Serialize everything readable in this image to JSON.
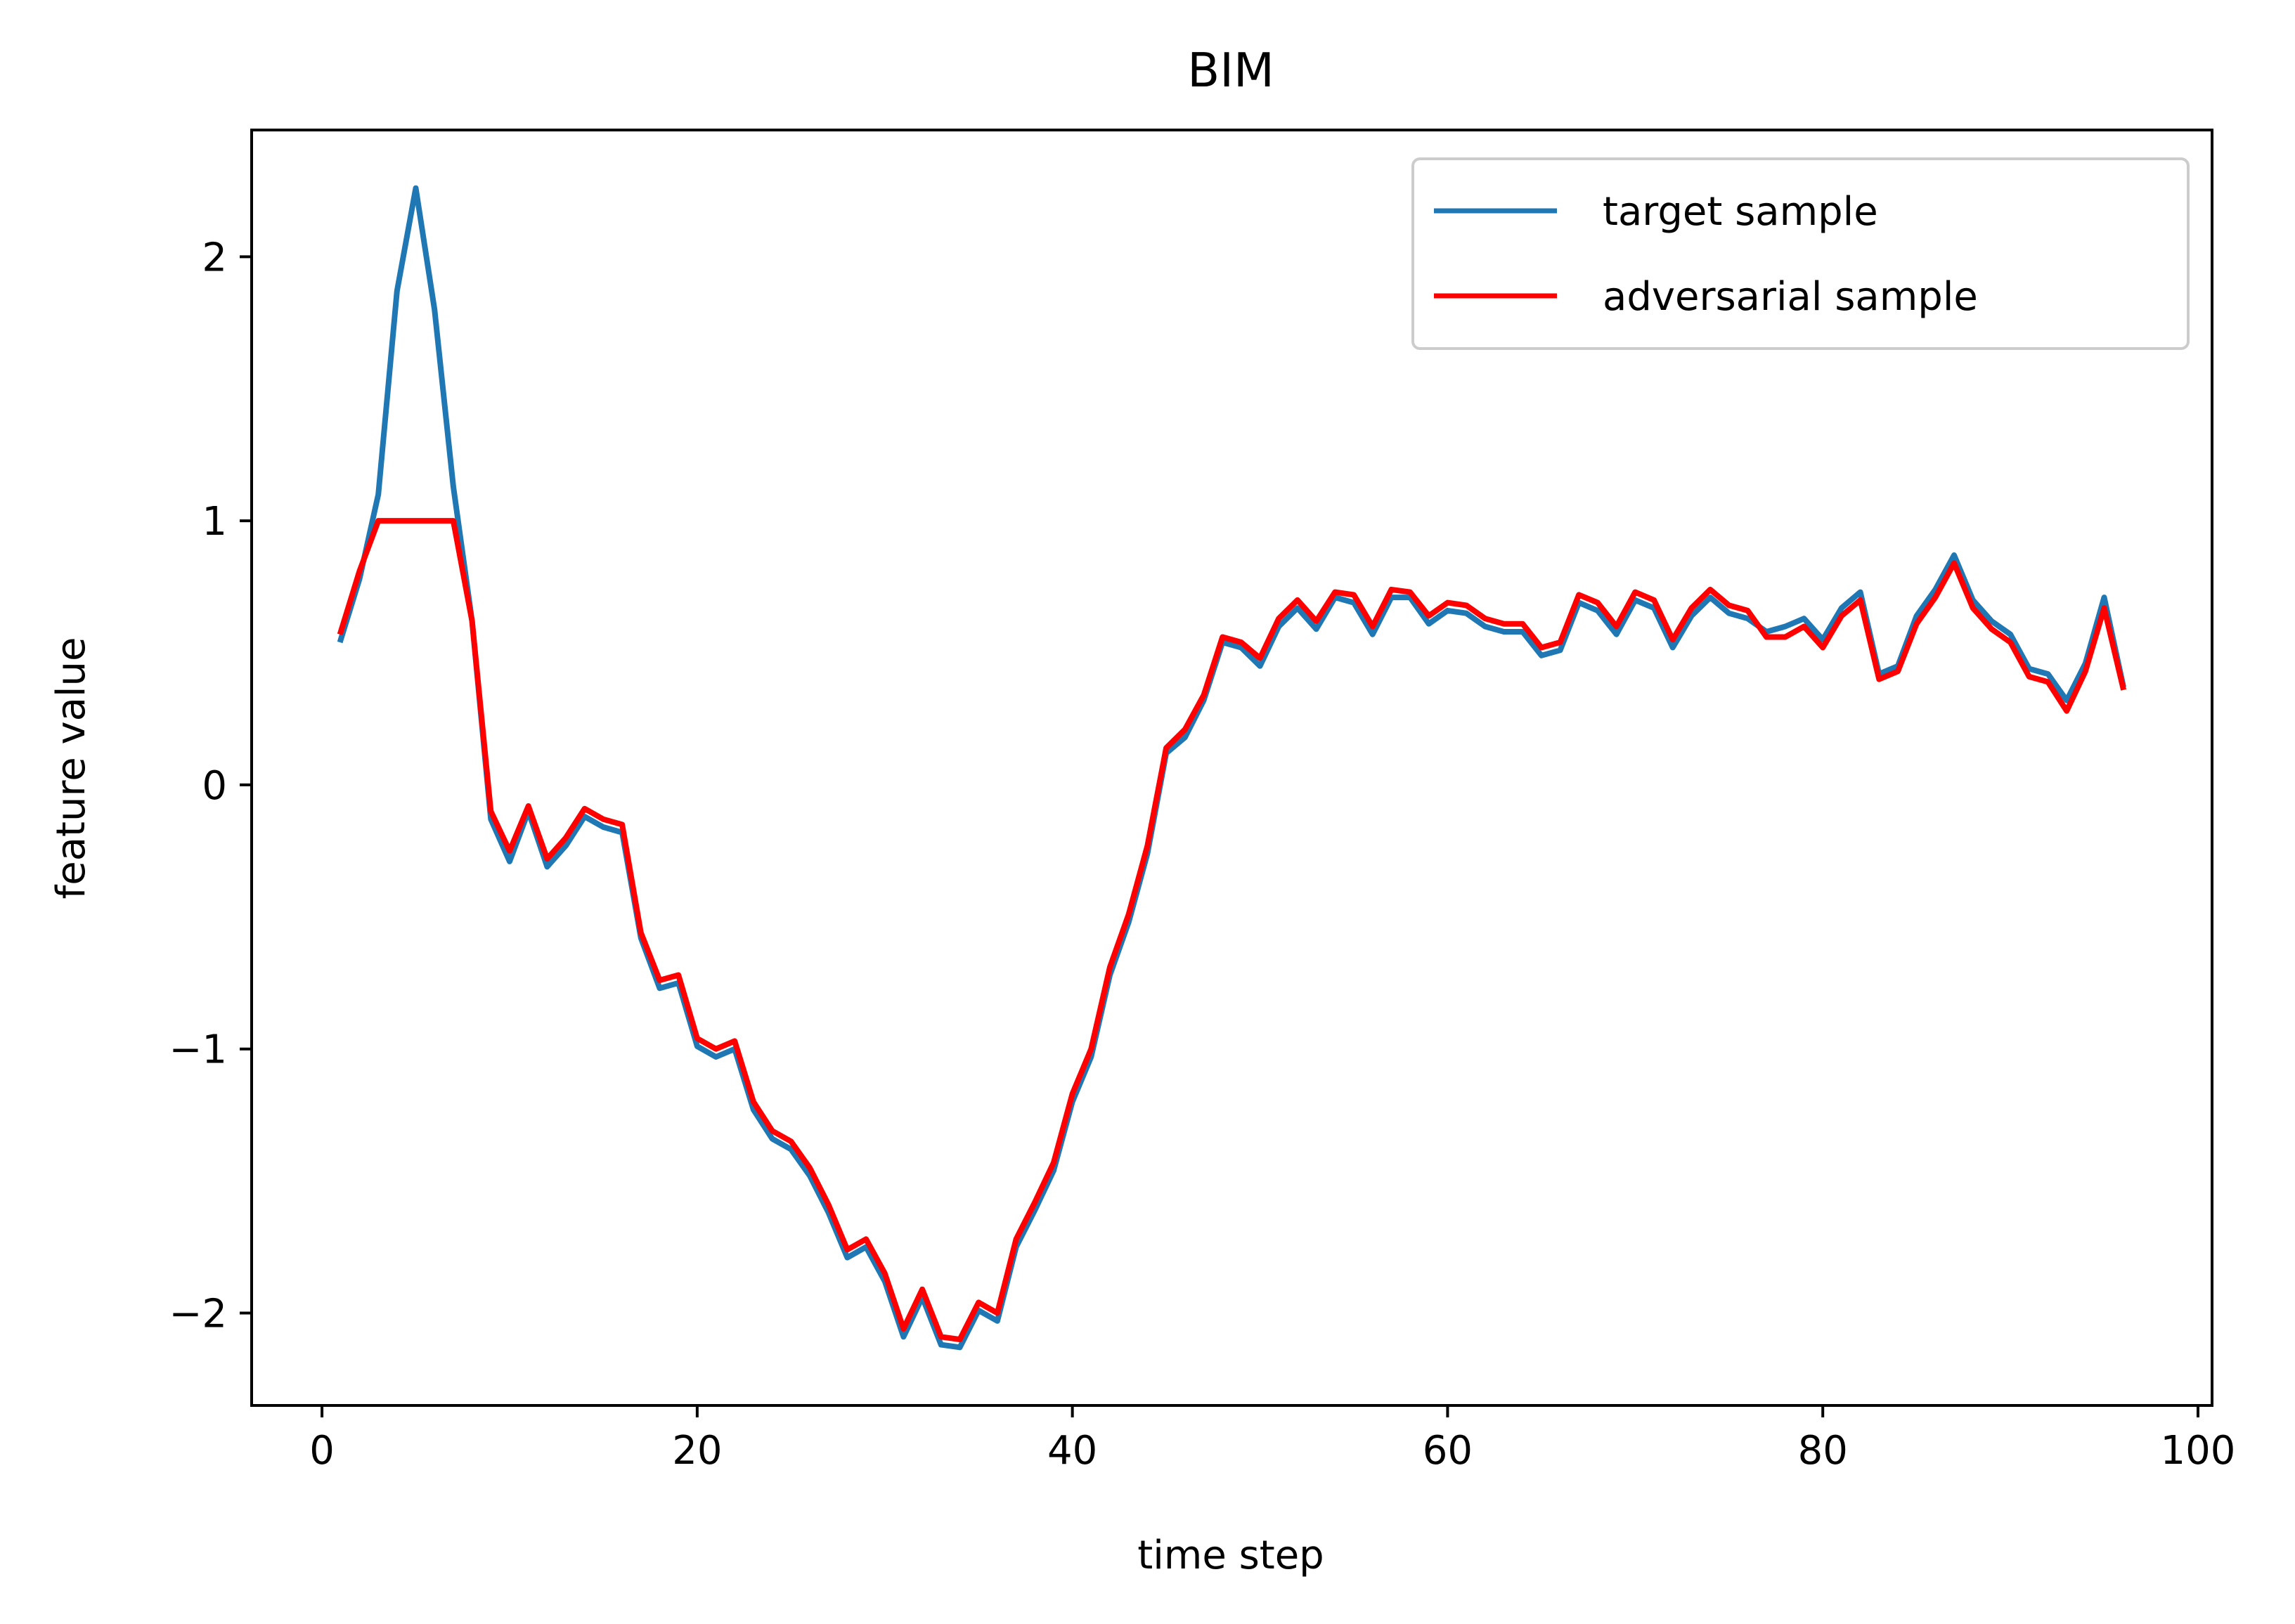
{
  "chart_data": {
    "type": "line",
    "title": "BIM",
    "xlabel": "time step",
    "ylabel": "feature value",
    "xlim": [
      -3.75,
      100.75
    ],
    "ylim": [
      -2.35,
      2.48
    ],
    "x_ticks": [
      0,
      20,
      40,
      60,
      80,
      100
    ],
    "x_tick_labels": [
      "0",
      "20",
      "40",
      "60",
      "80",
      "100"
    ],
    "y_ticks": [
      -2,
      -1,
      0,
      1,
      2
    ],
    "y_tick_labels": [
      "−2",
      "−1",
      "0",
      "1",
      "2"
    ],
    "grid": false,
    "legend": "top-right",
    "x": [
      1,
      2,
      3,
      4,
      5,
      6,
      7,
      8,
      9,
      10,
      11,
      12,
      13,
      14,
      15,
      16,
      17,
      18,
      19,
      20,
      21,
      22,
      23,
      24,
      25,
      26,
      27,
      28,
      29,
      30,
      31,
      32,
      33,
      34,
      35,
      36,
      37,
      38,
      39,
      40,
      41,
      42,
      43,
      44,
      45,
      46,
      47,
      48,
      49,
      50,
      51,
      52,
      53,
      54,
      55,
      56,
      57,
      58,
      59,
      60,
      61,
      62,
      63,
      64,
      65,
      66,
      67,
      68,
      69,
      70,
      71,
      72,
      73,
      74,
      75,
      76,
      77,
      78,
      79,
      80,
      81,
      82,
      83,
      84,
      85,
      86,
      87,
      88,
      89,
      90,
      91,
      92,
      93,
      94,
      95,
      96
    ],
    "series": [
      {
        "name": "target sample",
        "color": "#1f77b4",
        "values": [
          0.55,
          0.78,
          1.1,
          1.87,
          2.26,
          1.8,
          1.13,
          0.62,
          -0.13,
          -0.29,
          -0.1,
          -0.31,
          -0.23,
          -0.12,
          -0.16,
          -0.18,
          -0.58,
          -0.77,
          -0.75,
          -0.99,
          -1.03,
          -1.0,
          -1.23,
          -1.34,
          -1.38,
          -1.48,
          -1.62,
          -1.79,
          -1.75,
          -1.88,
          -2.09,
          -1.94,
          -2.12,
          -2.13,
          -1.99,
          -2.03,
          -1.75,
          -1.61,
          -1.46,
          -1.2,
          -1.03,
          -0.72,
          -0.52,
          -0.26,
          0.12,
          0.18,
          0.32,
          0.54,
          0.52,
          0.45,
          0.6,
          0.67,
          0.59,
          0.71,
          0.69,
          0.57,
          0.71,
          0.71,
          0.61,
          0.66,
          0.65,
          0.6,
          0.58,
          0.58,
          0.49,
          0.51,
          0.69,
          0.66,
          0.57,
          0.7,
          0.67,
          0.52,
          0.64,
          0.71,
          0.65,
          0.63,
          0.58,
          0.6,
          0.63,
          0.55,
          0.67,
          0.73,
          0.42,
          0.45,
          0.64,
          0.74,
          0.87,
          0.7,
          0.62,
          0.57,
          0.44,
          0.42,
          0.32,
          0.46,
          0.71,
          0.38
        ]
      },
      {
        "name": "adversarial sample",
        "color": "#ff0000",
        "values": [
          0.58,
          0.81,
          1.0,
          1.0,
          1.0,
          1.0,
          1.0,
          0.62,
          -0.1,
          -0.25,
          -0.08,
          -0.28,
          -0.2,
          -0.09,
          -0.13,
          -0.15,
          -0.56,
          -0.74,
          -0.72,
          -0.96,
          -1.0,
          -0.97,
          -1.2,
          -1.31,
          -1.35,
          -1.45,
          -1.59,
          -1.76,
          -1.72,
          -1.85,
          -2.06,
          -1.91,
          -2.09,
          -2.1,
          -1.96,
          -2.0,
          -1.72,
          -1.58,
          -1.43,
          -1.17,
          -1.0,
          -0.69,
          -0.49,
          -0.23,
          0.14,
          0.21,
          0.34,
          0.56,
          0.54,
          0.48,
          0.63,
          0.7,
          0.62,
          0.73,
          0.72,
          0.6,
          0.74,
          0.73,
          0.64,
          0.69,
          0.68,
          0.63,
          0.61,
          0.61,
          0.52,
          0.54,
          0.72,
          0.69,
          0.6,
          0.73,
          0.7,
          0.55,
          0.67,
          0.74,
          0.68,
          0.66,
          0.56,
          0.56,
          0.6,
          0.52,
          0.64,
          0.7,
          0.4,
          0.43,
          0.61,
          0.71,
          0.84,
          0.67,
          0.59,
          0.54,
          0.41,
          0.39,
          0.28,
          0.43,
          0.67,
          0.37
        ]
      }
    ]
  }
}
